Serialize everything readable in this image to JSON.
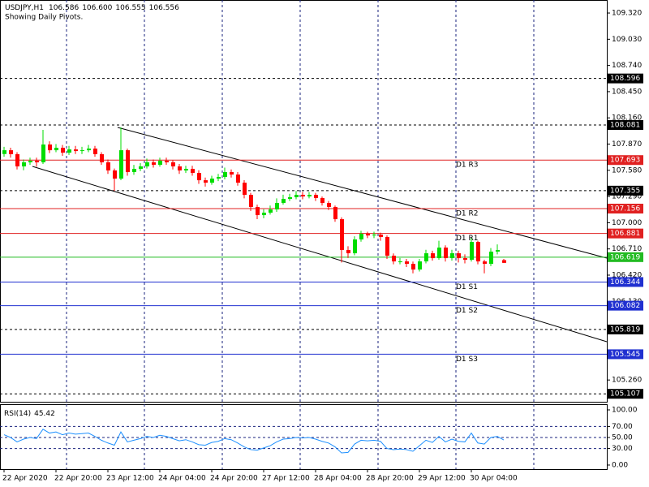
{
  "chart_data": {
    "type": "candlestick",
    "symbol": "USDJPY,H1",
    "last_bar_labels": [
      "106.586",
      "106.600",
      "106.555",
      "106.556"
    ],
    "subtitle": "Showing Daily Pivots.",
    "categories": [
      "22 Apr 2020",
      null,
      null,
      null,
      null,
      null,
      null,
      null,
      "22 Apr 20:00",
      null,
      null,
      null,
      null,
      null,
      null,
      null,
      "23 Apr 12:00",
      null,
      null,
      null,
      null,
      null,
      null,
      null,
      "24 Apr 04:00",
      null,
      null,
      null,
      null,
      null,
      null,
      null,
      "24 Apr 20:00",
      null,
      null,
      null,
      null,
      null,
      null,
      null,
      "27 Apr 12:00",
      null,
      null,
      null,
      null,
      null,
      null,
      null,
      "28 Apr 04:00",
      null,
      null,
      null,
      null,
      null,
      null,
      null,
      "28 Apr 20:00",
      null,
      null,
      null,
      null,
      null,
      null,
      null,
      "29 Apr 12:00",
      null,
      null,
      null,
      null,
      null,
      null,
      null,
      "30 Apr 04:00",
      null,
      null,
      null,
      null,
      null
    ],
    "open": [
      107.76,
      107.802,
      107.758,
      107.623,
      107.668,
      107.686,
      107.668,
      107.865,
      107.802,
      107.829,
      107.775,
      107.811,
      107.793,
      107.802,
      107.82,
      107.758,
      107.668,
      107.578,
      107.488,
      107.802,
      107.56,
      107.596,
      107.623,
      107.668,
      107.641,
      107.686,
      107.668,
      107.623,
      107.578,
      107.596,
      107.551,
      107.47,
      107.443,
      107.488,
      107.506,
      107.56,
      107.533,
      107.443,
      107.308,
      107.174,
      107.084,
      107.111,
      107.147,
      107.219,
      107.264,
      107.282,
      107.308,
      107.291,
      107.308,
      107.273,
      107.219,
      107.174,
      107.039,
      106.698,
      106.662,
      106.815,
      106.877,
      106.859,
      106.868,
      106.842,
      106.635,
      106.572,
      106.572,
      106.545,
      106.482,
      106.572,
      106.662,
      106.608,
      106.725,
      106.608,
      106.662,
      106.608,
      106.59,
      106.788,
      106.572,
      106.545,
      106.68,
      106.586
    ],
    "high": [
      107.84,
      107.83,
      107.78,
      107.7,
      107.72,
      107.72,
      108.027,
      107.9,
      107.87,
      107.86,
      107.85,
      107.85,
      107.84,
      107.86,
      107.85,
      107.78,
      107.7,
      107.6,
      108.054,
      107.82,
      107.64,
      107.66,
      107.71,
      107.7,
      107.72,
      107.72,
      107.69,
      107.65,
      107.63,
      107.63,
      107.58,
      107.5,
      107.52,
      107.54,
      107.61,
      107.59,
      107.56,
      107.47,
      107.33,
      107.2,
      107.15,
      107.19,
      107.27,
      107.31,
      107.32,
      107.35,
      107.34,
      107.34,
      107.33,
      107.29,
      107.24,
      107.19,
      107.06,
      106.74,
      106.85,
      106.91,
      106.9,
      106.9,
      106.89,
      106.86,
      106.66,
      106.61,
      106.6,
      106.57,
      106.6,
      106.7,
      106.69,
      106.8,
      106.75,
      106.7,
      106.69,
      106.65,
      106.83,
      106.8,
      106.59,
      106.72,
      106.76,
      106.6
    ],
    "low": [
      107.73,
      107.72,
      107.59,
      107.58,
      107.64,
      107.62,
      107.65,
      107.77,
      107.78,
      107.74,
      107.75,
      107.76,
      107.76,
      107.78,
      107.73,
      107.64,
      107.54,
      107.353,
      107.47,
      107.52,
      107.53,
      107.57,
      107.6,
      107.61,
      107.62,
      107.64,
      107.59,
      107.54,
      107.55,
      107.52,
      107.43,
      107.4,
      107.42,
      107.46,
      107.48,
      107.5,
      107.41,
      107.27,
      107.13,
      107.04,
      107.05,
      107.09,
      107.12,
      107.2,
      107.24,
      107.26,
      107.26,
      107.27,
      107.24,
      107.19,
      107.14,
      107.01,
      106.56,
      106.61,
      106.64,
      106.79,
      106.83,
      106.83,
      106.8,
      106.6,
      106.54,
      106.54,
      106.51,
      106.44,
      106.46,
      106.55,
      106.58,
      106.59,
      106.57,
      106.58,
      106.56,
      106.55,
      106.57,
      106.54,
      106.44,
      106.52,
      106.65,
      106.555
    ],
    "close": [
      107.802,
      107.758,
      107.623,
      107.668,
      107.686,
      107.668,
      107.865,
      107.802,
      107.829,
      107.775,
      107.811,
      107.793,
      107.802,
      107.82,
      107.758,
      107.668,
      107.578,
      107.488,
      107.802,
      107.56,
      107.596,
      107.623,
      107.668,
      107.641,
      107.686,
      107.668,
      107.623,
      107.578,
      107.596,
      107.551,
      107.47,
      107.443,
      107.488,
      107.506,
      107.56,
      107.533,
      107.443,
      107.308,
      107.174,
      107.084,
      107.111,
      107.147,
      107.219,
      107.264,
      107.282,
      107.308,
      107.291,
      107.308,
      107.273,
      107.219,
      107.174,
      107.039,
      106.698,
      106.662,
      106.815,
      106.877,
      106.859,
      106.868,
      106.842,
      106.635,
      106.572,
      106.572,
      106.545,
      106.482,
      106.572,
      106.662,
      106.608,
      106.725,
      106.608,
      106.662,
      106.608,
      106.59,
      106.788,
      106.572,
      106.545,
      106.68,
      106.698,
      106.556
    ],
    "up_color": "#00dd00",
    "down_color": "#ff0000",
    "ylim": [
      105.019,
      109.464
    ],
    "yticks": [
      {
        "value": 109.32,
        "label": "109.320"
      },
      {
        "value": 109.03,
        "label": "109.030"
      },
      {
        "value": 108.74,
        "label": "108.740"
      },
      {
        "value": 108.45,
        "label": "108.450"
      },
      {
        "value": 108.16,
        "label": "108.160"
      },
      {
        "value": 107.87,
        "label": "107.870"
      },
      {
        "value": 107.58,
        "label": "107.580"
      },
      {
        "value": 107.29,
        "label": "107.290"
      },
      {
        "value": 107.0,
        "label": "107.000"
      },
      {
        "value": 106.71,
        "label": "106.710"
      },
      {
        "value": 106.42,
        "label": "106.420"
      },
      {
        "value": 106.13,
        "label": "106.130"
      },
      {
        "value": 105.26,
        "label": "105.260"
      }
    ],
    "levels": [
      {
        "value": 108.596,
        "color": "#000000",
        "style": "dashed"
      },
      {
        "value": 108.081,
        "color": "#000000",
        "style": "dashed"
      },
      {
        "value": 107.693,
        "color": "#e02020",
        "style": "solid",
        "name": "D1 R3"
      },
      {
        "value": 107.355,
        "color": "#000000",
        "style": "dashed"
      },
      {
        "value": 107.156,
        "color": "#e02020",
        "style": "solid",
        "name": "D1 R2"
      },
      {
        "value": 106.881,
        "color": "#e02020",
        "style": "solid",
        "name": "D1 R1"
      },
      {
        "value": 106.619,
        "color": "#22bb22",
        "style": "solid"
      },
      {
        "value": 106.344,
        "color": "#2030d0",
        "style": "solid",
        "name": "D1 S1"
      },
      {
        "value": 106.082,
        "color": "#2030d0",
        "style": "solid",
        "name": "D1 S2"
      },
      {
        "value": 105.819,
        "color": "#000000",
        "style": "dashed"
      },
      {
        "value": 105.545,
        "color": "#2030d0",
        "style": "solid",
        "name": "D1 S3"
      },
      {
        "value": 105.107,
        "color": "#000000",
        "style": "dashed"
      }
    ],
    "rsi": {
      "name": "RSI(14)",
      "color": "#1e90ff",
      "values": [
        55,
        50,
        42,
        47,
        50,
        48,
        65,
        58,
        60,
        55,
        58,
        56,
        57,
        58,
        52,
        45,
        40,
        36,
        60,
        42,
        45,
        48,
        52,
        50,
        54,
        52,
        48,
        44,
        46,
        42,
        37,
        36,
        41,
        43,
        48,
        46,
        40,
        33,
        28,
        27,
        31,
        35,
        42,
        47,
        48,
        50,
        49,
        50,
        47,
        43,
        40,
        33,
        22,
        23,
        38,
        45,
        44,
        45,
        43,
        30,
        28,
        29,
        28,
        25,
        35,
        45,
        41,
        52,
        42,
        47,
        43,
        42,
        58,
        40,
        38,
        50,
        52,
        45.42
      ],
      "ylim": [
        -7.4,
        110.3
      ],
      "yticks": [
        {
          "value": 100,
          "label": "100.00"
        },
        {
          "value": 70,
          "label": "70.00"
        },
        {
          "value": 50,
          "label": "50.00"
        },
        {
          "value": 30,
          "label": "30.00"
        },
        {
          "value": 0,
          "label": "0.00"
        }
      ]
    }
  }
}
